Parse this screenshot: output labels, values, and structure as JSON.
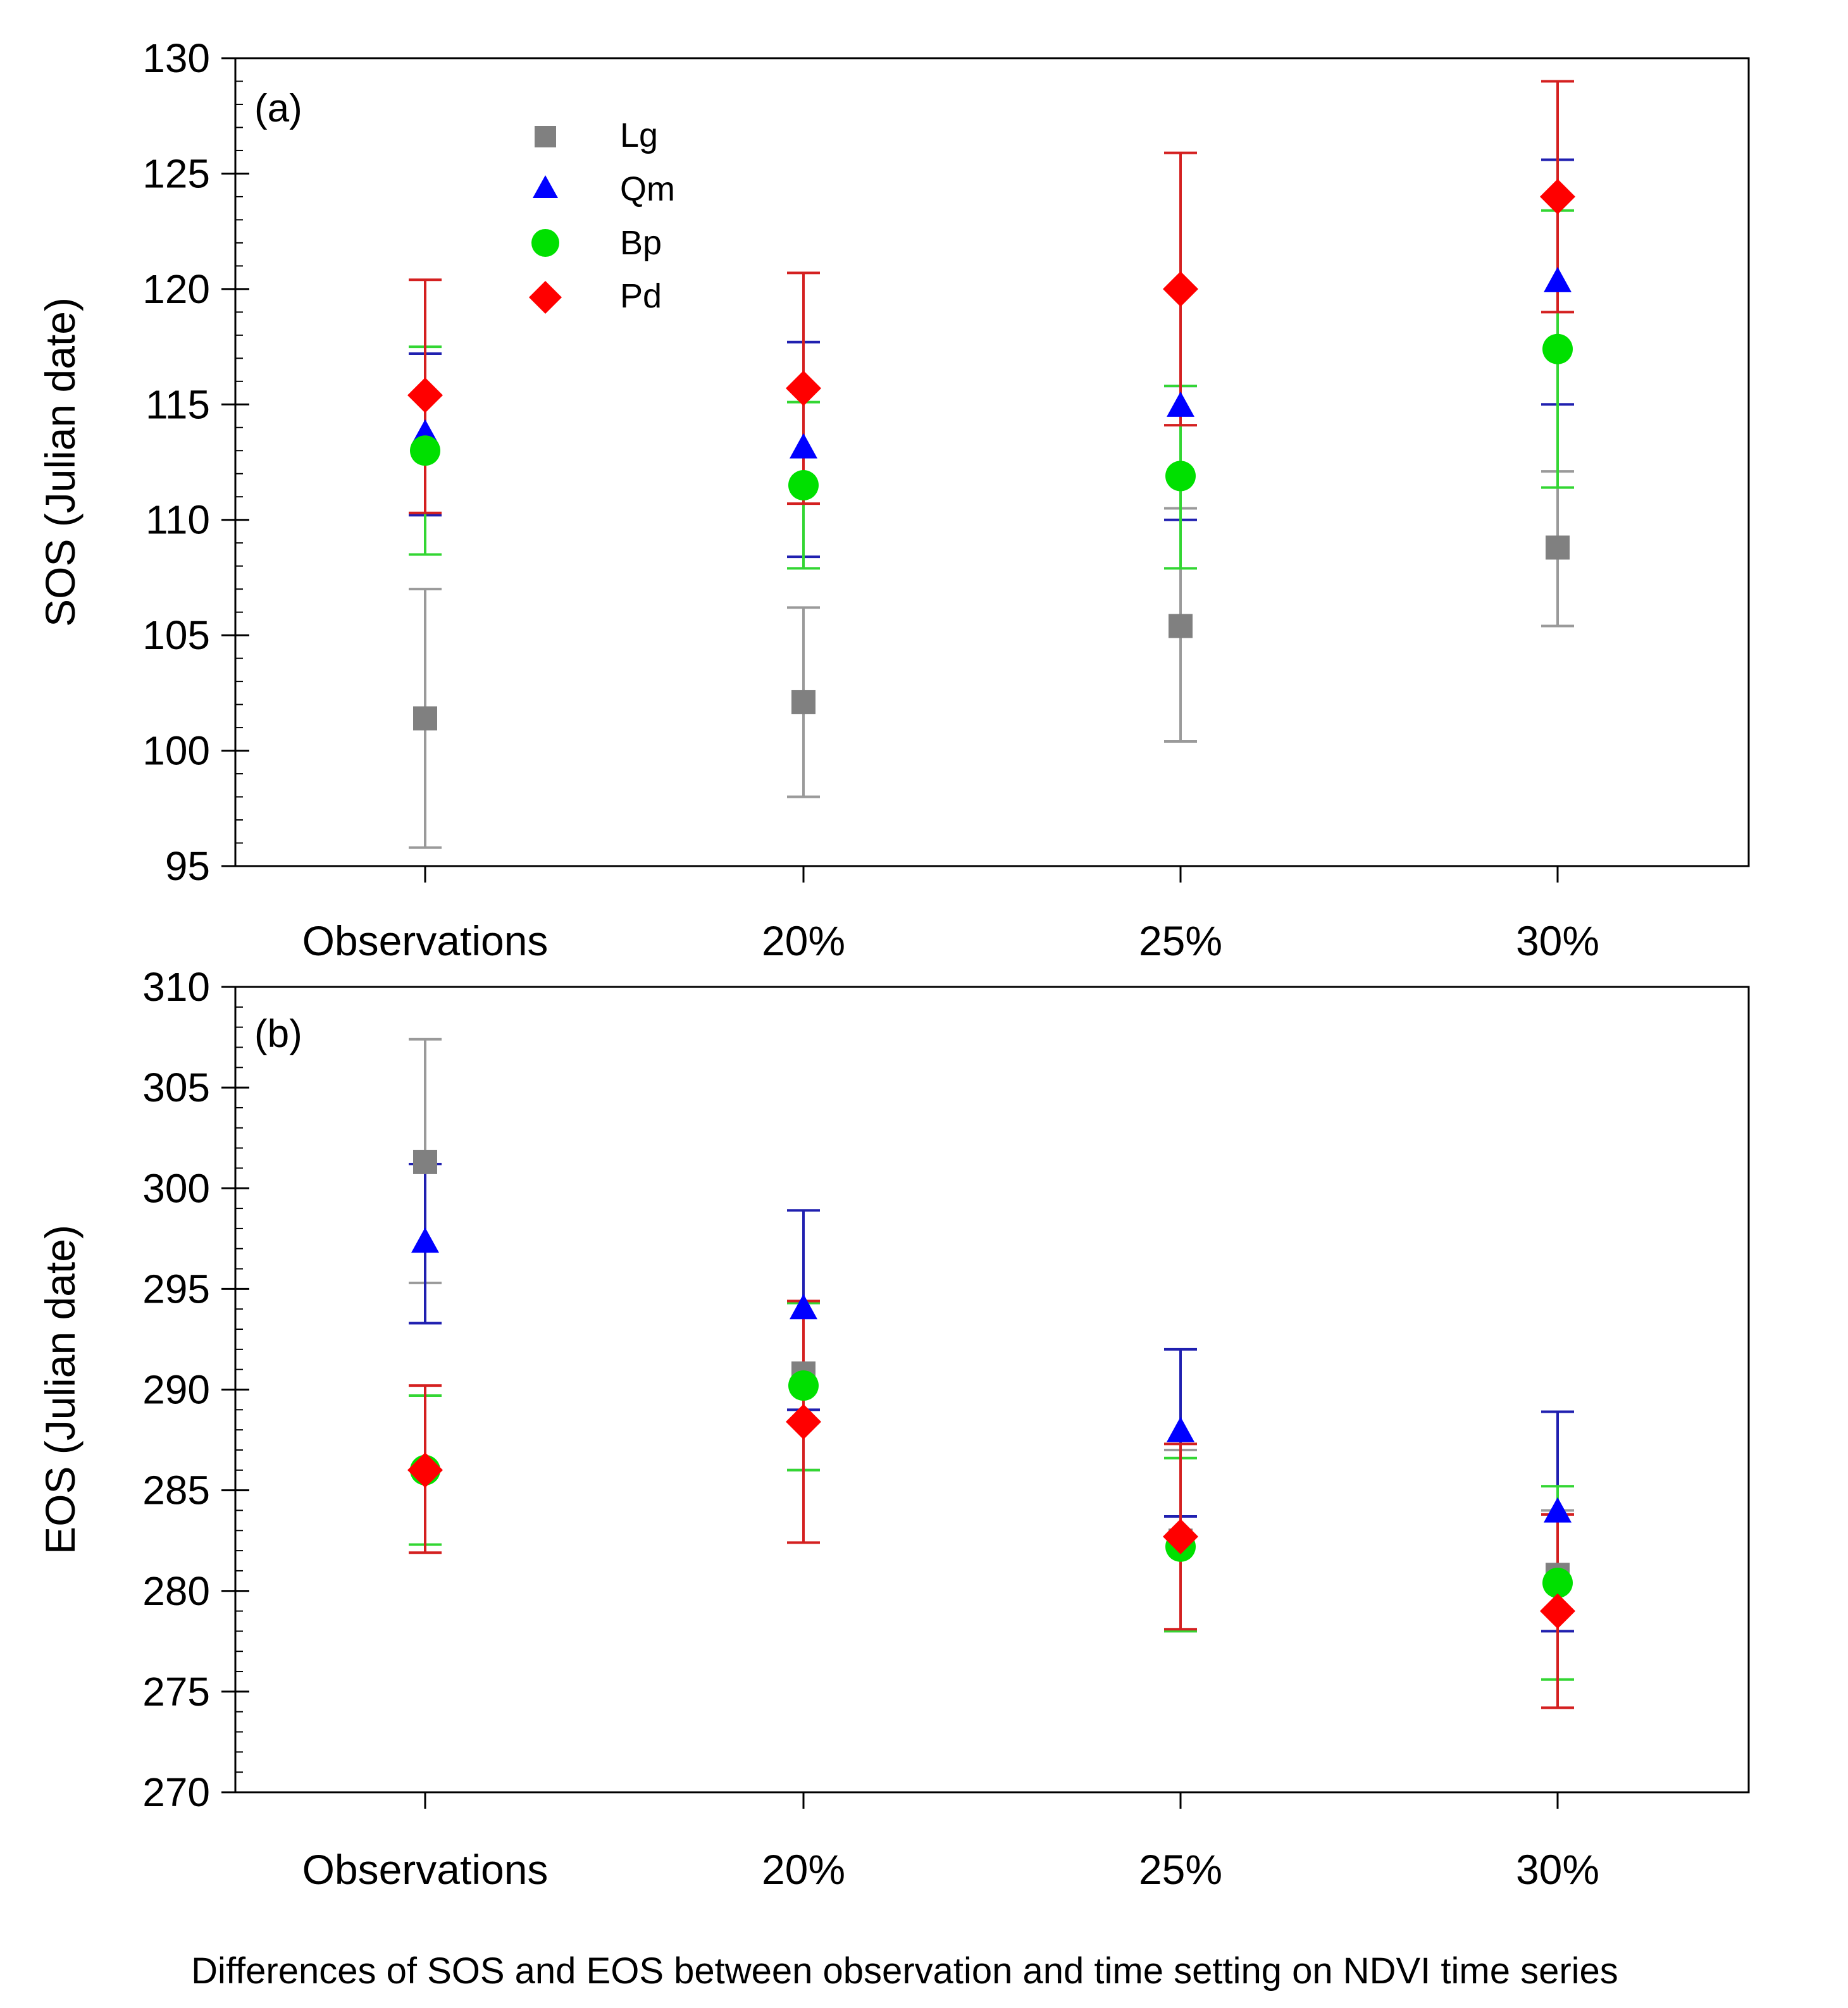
{
  "figure": {
    "caption": "Differences of SOS and EOS between observation and time setting on NDVI time series"
  },
  "legend": {
    "placement": "top-left",
    "entries": [
      {
        "name": "Lg",
        "color": "#808080",
        "marker": "square"
      },
      {
        "name": "Qm",
        "color": "#0000ff",
        "marker": "triangle"
      },
      {
        "name": "Bp",
        "color": "#00e000",
        "marker": "circle"
      },
      {
        "name": "Pd",
        "color": "#ff0000",
        "marker": "diamond"
      }
    ]
  },
  "chart_data": [
    {
      "panel_label": "(a)",
      "type": "scatter",
      "subtype": "errorbar",
      "title": "",
      "xlabel": "",
      "ylabel": "SOS (Julian date)",
      "categories": [
        "Observations",
        "20%",
        "25%",
        "30%"
      ],
      "ylim": [
        95,
        130
      ],
      "yticks": [
        95,
        100,
        105,
        110,
        115,
        120,
        125,
        130
      ],
      "ytick_labels": [
        "95",
        "100",
        "105",
        "110",
        "115",
        "120",
        "125",
        "130"
      ],
      "minor_tick_step": 1,
      "series": [
        {
          "name": "Lg",
          "values": [
            101.4,
            102.1,
            105.4,
            108.8
          ],
          "err_low": [
            95.8,
            98.0,
            100.4,
            105.4
          ],
          "err_high": [
            107.0,
            106.2,
            110.5,
            112.1
          ]
        },
        {
          "name": "Qm",
          "values": [
            113.7,
            113.1,
            114.9,
            120.3
          ],
          "err_low": [
            110.2,
            108.4,
            110.0,
            115.0
          ],
          "err_high": [
            117.2,
            117.7,
            115.8,
            125.6
          ]
        },
        {
          "name": "Bp",
          "values": [
            113.0,
            111.5,
            111.9,
            117.4
          ],
          "err_low": [
            108.5,
            107.9,
            107.9,
            111.4
          ],
          "err_high": [
            117.5,
            115.1,
            115.8,
            123.4
          ]
        },
        {
          "name": "Pd",
          "values": [
            115.4,
            115.7,
            120.0,
            124.0
          ],
          "err_low": [
            110.3,
            110.7,
            114.1,
            119.0
          ],
          "err_high": [
            120.4,
            120.7,
            125.9,
            129.0
          ]
        }
      ]
    },
    {
      "panel_label": "(b)",
      "type": "scatter",
      "subtype": "errorbar",
      "title": "",
      "xlabel": "",
      "ylabel": "EOS (Julian date)",
      "categories": [
        "Observations",
        "20%",
        "25%",
        "30%"
      ],
      "ylim": [
        270,
        310
      ],
      "yticks": [
        270,
        275,
        280,
        285,
        290,
        295,
        300,
        305,
        310
      ],
      "ytick_labels": [
        "270",
        "275",
        "280",
        "285",
        "290",
        "295",
        "300",
        "305",
        "310"
      ],
      "minor_tick_step": 1,
      "series": [
        {
          "name": "Lg",
          "values": [
            301.3,
            290.8,
            282.5,
            280.8
          ],
          "err_low": [
            295.3,
            286.0,
            278.0,
            278.0
          ],
          "err_high": [
            307.4,
            294.3,
            287.0,
            284.0
          ]
        },
        {
          "name": "Qm",
          "values": [
            297.3,
            294.0,
            287.9,
            283.9
          ],
          "err_low": [
            293.3,
            289.0,
            283.7,
            278.0
          ],
          "err_high": [
            301.2,
            298.9,
            292.0,
            288.9
          ]
        },
        {
          "name": "Bp",
          "values": [
            286.0,
            290.2,
            282.2,
            280.4
          ],
          "err_low": [
            282.3,
            286.0,
            278.0,
            275.6
          ],
          "err_high": [
            289.7,
            294.3,
            286.6,
            285.2
          ]
        },
        {
          "name": "Pd",
          "values": [
            286.0,
            288.4,
            282.7,
            279.0
          ],
          "err_low": [
            281.9,
            282.4,
            278.1,
            274.2
          ],
          "err_high": [
            290.2,
            294.4,
            287.3,
            283.8
          ]
        }
      ]
    }
  ]
}
